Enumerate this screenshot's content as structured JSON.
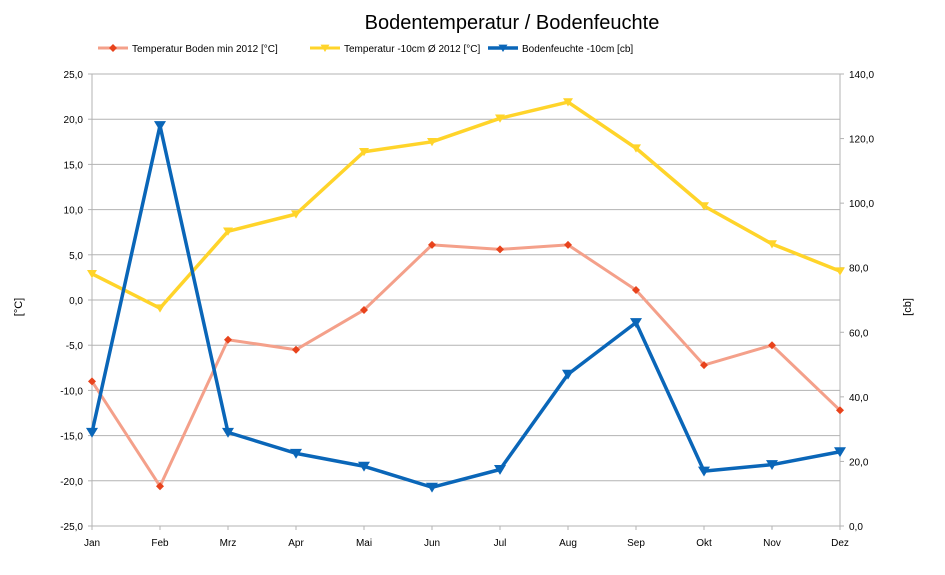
{
  "chart_data": {
    "type": "line",
    "title": "Bodentemperatur / Bodenfeuchte",
    "categories": [
      "Jan",
      "Feb",
      "Mrz",
      "Apr",
      "Mai",
      "Jun",
      "Jul",
      "Aug",
      "Sep",
      "Okt",
      "Nov",
      "Dez"
    ],
    "ylabel": "[°C]",
    "y2label": "[cb]",
    "ylim": [
      -25,
      25
    ],
    "y2lim": [
      0,
      140
    ],
    "yticks": [
      "25,0",
      "20,0",
      "15,0",
      "10,0",
      "5,0",
      "0,0",
      "-5,0",
      "-10,0",
      "-15,0",
      "-20,0",
      "-25,0"
    ],
    "y2ticks": [
      "140,0",
      "120,0",
      "100,0",
      "80,0",
      "60,0",
      "40,0",
      "20,0",
      "0,0"
    ],
    "grid": true,
    "legend_position": "top",
    "series": [
      {
        "name": "Temperatur Boden min  2012 [°C]",
        "axis": "left",
        "color": "#f4a08a",
        "marker_color": "#e8431c",
        "marker": "diamond",
        "values": [
          -9.0,
          -20.6,
          -4.4,
          -5.5,
          -1.1,
          6.1,
          5.6,
          6.1,
          1.1,
          -7.2,
          -5.0,
          -12.2
        ]
      },
      {
        "name": "Temperatur -10cm Ø 2012 [°C]",
        "axis": "left",
        "color": "#ffd42a",
        "marker_color": "#ffd42a",
        "marker": "triangle-down",
        "values": [
          2.9,
          -0.9,
          7.6,
          9.5,
          16.4,
          17.5,
          20.1,
          21.9,
          16.8,
          10.4,
          6.2,
          3.2
        ]
      },
      {
        "name": "Bodenfeuchte -10cm [cb]",
        "axis": "right",
        "color": "#0a66b8",
        "marker_color": "#0a66b8",
        "marker": "triangle-down",
        "values": [
          29.0,
          124.0,
          29.0,
          22.5,
          18.5,
          12.0,
          17.5,
          47.0,
          63.0,
          17.0,
          19.0,
          23.0
        ]
      }
    ]
  }
}
